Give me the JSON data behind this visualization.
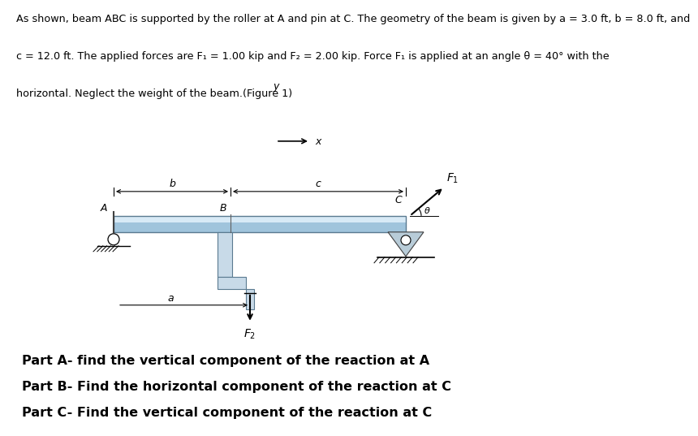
{
  "bg_color": "#ddeef6",
  "white_bg": "#ffffff",
  "header_line1": "As shown, beam ABC is supported by the roller at A and pin at C. The geometry of the beam is given by a = 3.0 ft, b = 8.0 ft, and",
  "header_line2": "c = 12.0 ft. The applied forces are F₁ = 1.00 kip and F₂ = 2.00 kip. Force F₁ is applied at an angle θ = 40° with the",
  "header_line3": "horizontal. Neglect the weight of the beam.(Figure 1)",
  "part_a": "Part A- find the vertical component of the reaction at A",
  "part_b": "Part B- Find the horizontal component of the reaction at C",
  "part_c": "Part C- Find the vertical component of the reaction at C",
  "beam_color_top": "#c8dff0",
  "beam_color_bot": "#8ab4d0",
  "beam_edge_color": "#5a7a90"
}
